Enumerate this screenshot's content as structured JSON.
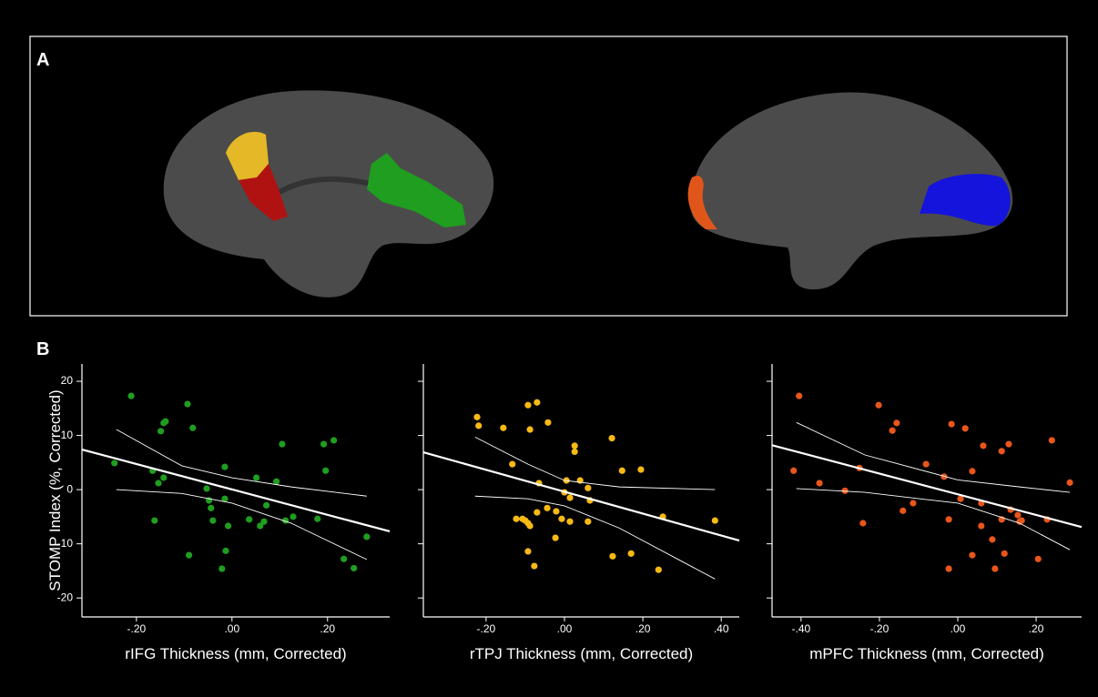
{
  "panels": [
    "A",
    "B"
  ],
  "chart_data": [
    {
      "type": "scatter",
      "xlabel": "rIFG Thickness (mm, Corrected)",
      "ylabel": "STOMP Index (%, Corrected)",
      "color": "#1f9e1f",
      "ytick_labels": true,
      "xlim": [
        -0.314,
        0.33
      ],
      "ylim": [
        -23.5,
        23.2
      ],
      "xticks": [
        {
          "value": -0.2,
          "label": "-.20"
        },
        {
          "value": 0,
          "label": ".00"
        },
        {
          "value": 0.2,
          "label": ".20"
        }
      ],
      "yticks": [
        -20,
        -10,
        0,
        10,
        20
      ],
      "x": [
        -0.211,
        -0.093,
        -0.143,
        -0.139,
        -0.082,
        -0.149,
        -0.166,
        -0.154,
        -0.143,
        -0.162,
        -0.053,
        -0.015,
        -0.048,
        -0.044,
        -0.04,
        -0.015,
        -0.013,
        -0.008,
        -0.09,
        -0.021,
        0.036,
        0.059,
        0.067,
        0.072,
        0.051,
        0.105,
        0.093,
        0.112,
        0.128,
        0.179,
        0.192,
        0.213,
        0.196,
        0.234,
        0.255,
        0.282,
        -0.246
      ],
      "values": [
        17.3,
        15.8,
        12.3,
        12.6,
        11.4,
        10.8,
        3.5,
        1.2,
        2.2,
        -5.7,
        0.2,
        4.2,
        -2.0,
        -3.4,
        -5.7,
        -1.7,
        -11.3,
        -6.7,
        -12.1,
        -14.6,
        -5.5,
        -6.7,
        -5.9,
        -2.9,
        2.2,
        8.4,
        1.5,
        -5.7,
        -5.0,
        -5.4,
        8.4,
        9.1,
        3.5,
        -12.8,
        -14.5,
        -8.7,
        4.9
      ],
      "fit_x": [
        -0.314,
        0.33
      ],
      "fit_y": [
        7.4,
        -7.7
      ],
      "ci_x": [
        -0.242,
        -0.105,
        0,
        0.124,
        0.282
      ],
      "ci_upper": [
        11.1,
        4.4,
        2.2,
        0.5,
        -1.2
      ],
      "ci_lower": [
        0,
        -0.7,
        -2.5,
        -6.2,
        -12.9
      ]
    },
    {
      "type": "scatter",
      "xlabel": "rTPJ Thickness (mm, Corrected)",
      "color": "#f7b914",
      "ytick_labels": false,
      "xlim": [
        -0.36,
        0.446
      ],
      "ylim": [
        -23.5,
        23.2
      ],
      "xticks": [
        {
          "value": -0.2,
          "label": "-.20"
        },
        {
          "value": 0,
          "label": ".00"
        },
        {
          "value": 0.2,
          "label": ".20"
        },
        {
          "value": 0.4,
          "label": ".40"
        }
      ],
      "yticks": [
        -20,
        -10,
        0,
        10,
        20
      ],
      "x": [
        -0.223,
        -0.219,
        -0.156,
        -0.093,
        -0.07,
        -0.042,
        -0.088,
        -0.133,
        -0.065,
        0.005,
        0.0,
        0.026,
        0.026,
        0.04,
        0.06,
        0.065,
        0.121,
        0.147,
        -0.123,
        -0.107,
        -0.1,
        -0.093,
        -0.088,
        -0.07,
        -0.044,
        -0.021,
        -0.007,
        0.014,
        0.06,
        -0.093,
        -0.077,
        -0.023,
        0.123,
        0.17,
        0.24,
        0.195,
        0.251,
        0.384,
        0.014
      ],
      "values": [
        13.4,
        11.8,
        11.4,
        15.6,
        16.1,
        12.4,
        11.1,
        4.7,
        1.2,
        1.7,
        -0.5,
        8.1,
        7.0,
        1.7,
        0.3,
        -2.0,
        9.5,
        3.5,
        -5.4,
        -5.4,
        -5.7,
        -6.2,
        -6.7,
        -4.2,
        -3.4,
        -4.0,
        -5.4,
        -5.9,
        -5.9,
        -11.4,
        -14.1,
        -8.9,
        -12.3,
        -11.8,
        -14.8,
        3.7,
        -5.0,
        -5.7,
        -1.5
      ],
      "fit_x": [
        -0.36,
        0.446
      ],
      "fit_y": [
        6.9,
        -9.4
      ],
      "ci_x": [
        -0.228,
        -0.093,
        0,
        0.14,
        0.384
      ],
      "ci_upper": [
        9.7,
        4.7,
        1.7,
        0.5,
        0
      ],
      "ci_lower": [
        -1.2,
        -1.7,
        -3.0,
        -7.1,
        -16.5
      ]
    },
    {
      "type": "scatter",
      "xlabel": "mPFC Thickness (mm, Corrected)",
      "color": "#e8561a",
      "ytick_labels": false,
      "xlim": [
        -0.474,
        0.316
      ],
      "ylim": [
        -23.5,
        23.2
      ],
      "xticks": [
        {
          "value": -0.4,
          "label": "-.40"
        },
        {
          "value": -0.2,
          "label": "-.20"
        },
        {
          "value": 0,
          "label": ".00"
        },
        {
          "value": 0.2,
          "label": ".20"
        }
      ],
      "yticks": [
        -20,
        -10,
        0,
        10,
        20
      ],
      "x": [
        -0.405,
        -0.202,
        -0.156,
        -0.167,
        -0.016,
        0.019,
        0.065,
        0.112,
        0.13,
        0.24,
        0.286,
        -0.419,
        -0.353,
        -0.288,
        -0.251,
        -0.14,
        -0.114,
        -0.081,
        -0.035,
        -0.023,
        -0.023,
        0.007,
        0.037,
        0.06,
        0.06,
        0.037,
        0.088,
        0.095,
        0.112,
        0.135,
        0.153,
        0.163,
        0.158,
        0.119,
        0.205,
        0.228,
        -0.242
      ],
      "values": [
        17.3,
        15.6,
        12.3,
        10.9,
        12.1,
        11.3,
        8.1,
        7.1,
        8.4,
        9.1,
        1.3,
        3.5,
        1.2,
        -0.2,
        4.0,
        -3.9,
        -2.5,
        4.7,
        2.4,
        -5.5,
        -14.6,
        -1.7,
        3.4,
        -2.5,
        -6.7,
        -12.1,
        -9.2,
        -14.6,
        -5.5,
        -3.7,
        -4.7,
        -5.7,
        -5.9,
        -11.8,
        -12.8,
        -5.5,
        -6.2
      ],
      "fit_x": [
        -0.474,
        0.316
      ],
      "fit_y": [
        8.2,
        -6.9
      ],
      "ci_x": [
        -0.412,
        -0.237,
        0,
        0.158,
        0.286
      ],
      "ci_upper": [
        12.4,
        6.4,
        1.8,
        0.5,
        -0.5
      ],
      "ci_lower": [
        0.2,
        -0.5,
        -2.5,
        -6.2,
        -11.1
      ]
    }
  ]
}
